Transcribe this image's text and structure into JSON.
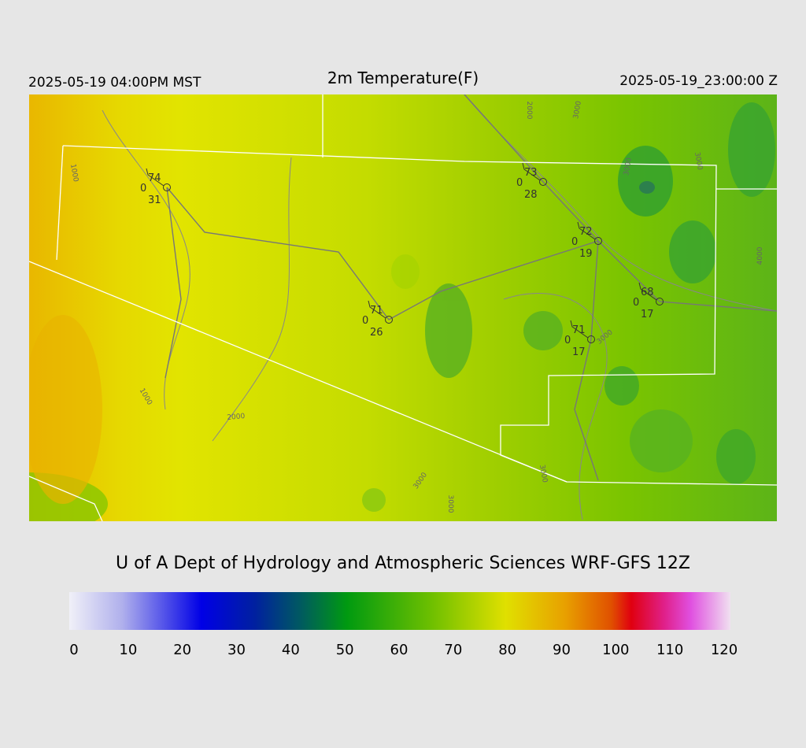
{
  "header": {
    "left": "2025-05-19 04:00PM MST",
    "title": "2m Temperature(F)",
    "right": "2025-05-19_23:00:00 Z"
  },
  "stations": [
    {
      "temp": 74,
      "cover": "0",
      "dewpoint": 31
    },
    {
      "temp": 73,
      "cover": "0",
      "dewpoint": 28
    },
    {
      "temp": 72,
      "cover": "0",
      "dewpoint": 19
    },
    {
      "temp": 68,
      "cover": "0",
      "dewpoint": 17
    },
    {
      "temp": 71,
      "cover": "0",
      "dewpoint": 26
    },
    {
      "temp": 71,
      "cover": "0",
      "dewpoint": 17
    }
  ],
  "contour_labels": [
    "1000",
    "2000",
    "3000",
    "3000",
    "3000",
    "4000",
    "1000",
    "2000",
    "3000",
    "3000",
    "3000",
    "3000"
  ],
  "credit": "U of A Dept of Hydrology and Atmospheric Sciences WRF-GFS 12Z",
  "colorbar": {
    "ticks": [
      0,
      10,
      20,
      30,
      40,
      50,
      60,
      70,
      80,
      90,
      100,
      110,
      120
    ]
  }
}
